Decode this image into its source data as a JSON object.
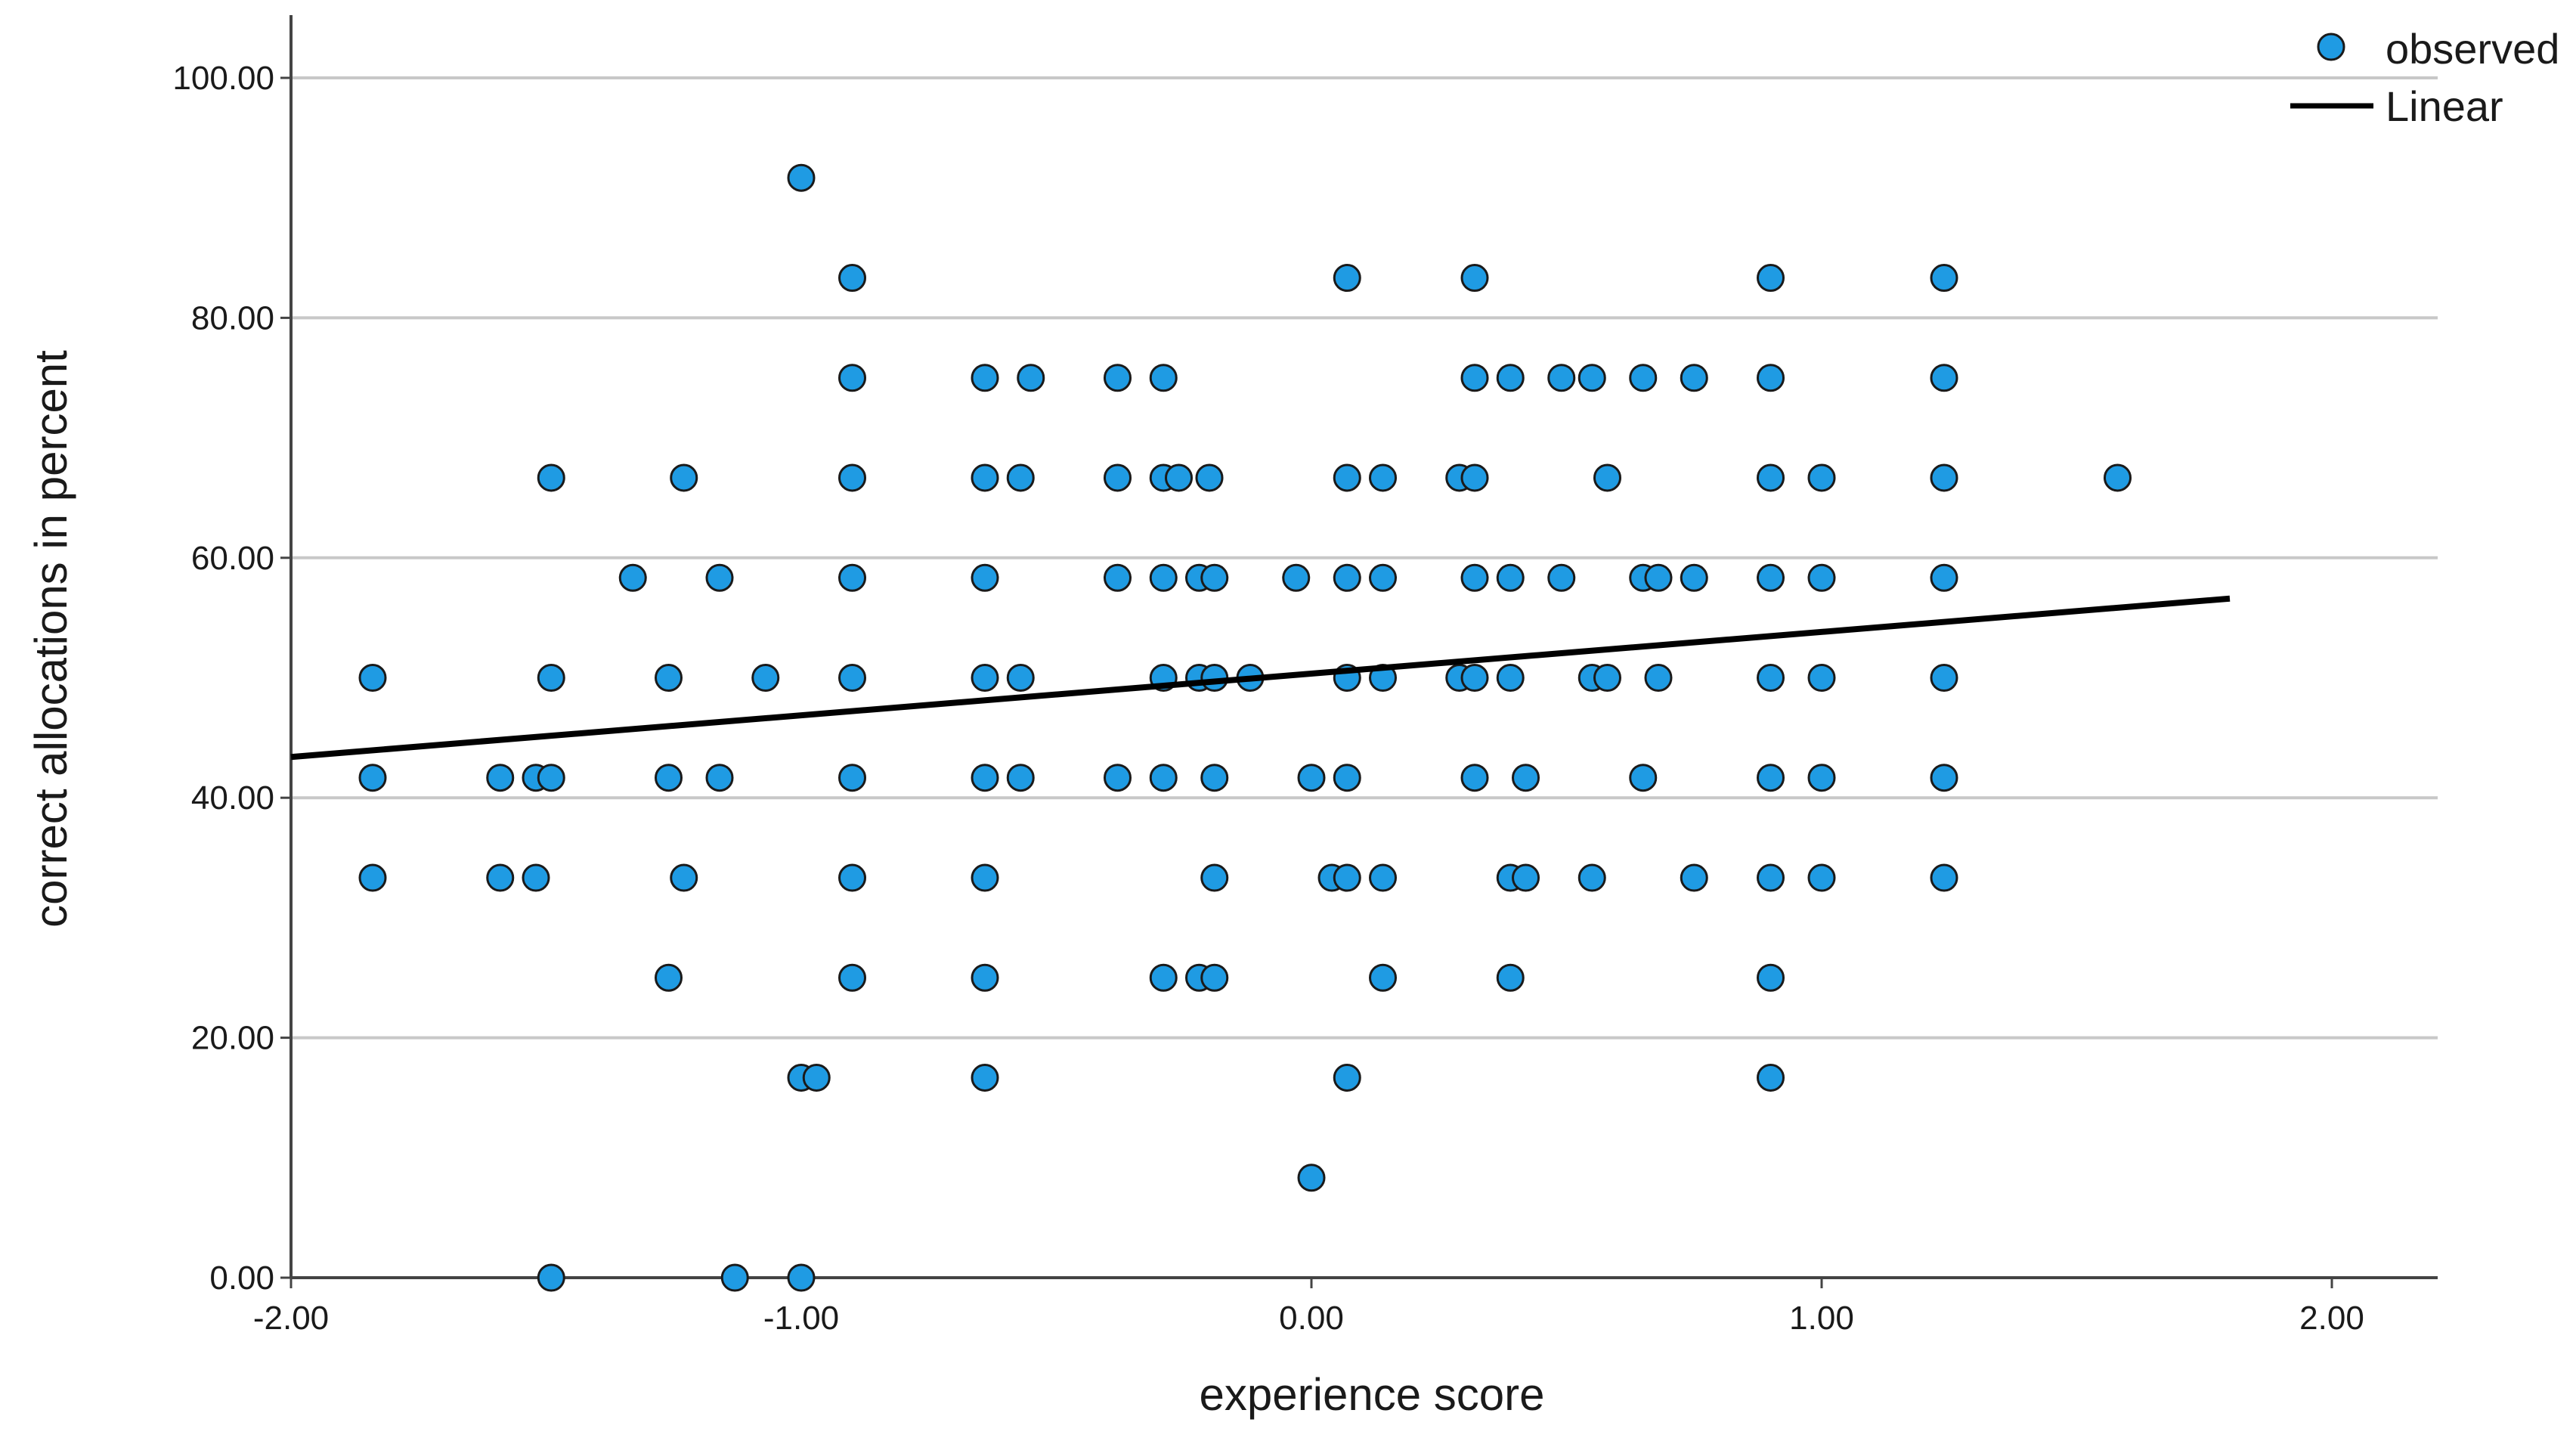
{
  "chart_data": {
    "type": "scatter",
    "title": "",
    "xlabel": "experience score",
    "ylabel": "correct allocations in percent",
    "xlim": [
      -2.0,
      2.2
    ],
    "ylim": [
      0,
      105
    ],
    "x_ticks": [
      {
        "value": -2.0,
        "label": "-2.00"
      },
      {
        "value": -1.0,
        "label": "-1.00"
      },
      {
        "value": 0.0,
        "label": "0.00"
      },
      {
        "value": 1.0,
        "label": "1.00"
      },
      {
        "value": 2.0,
        "label": "2.00"
      }
    ],
    "y_ticks": [
      {
        "value": 0,
        "label": "0.00"
      },
      {
        "value": 20,
        "label": "20.00"
      },
      {
        "value": 40,
        "label": "40.00"
      },
      {
        "value": 60,
        "label": "60.00"
      },
      {
        "value": 80,
        "label": "80.00"
      },
      {
        "value": 100,
        "label": "100.00"
      }
    ],
    "grid": "horizontal",
    "legend": {
      "position": "top-right",
      "entries": [
        {
          "label": "observed",
          "marker": "circle"
        },
        {
          "label": "Linear",
          "marker": "line"
        }
      ]
    },
    "colors": {
      "point_fill": "#1f9be3",
      "point_edge": "#1a1a1a",
      "line": "#000000",
      "grid": "#c8c8c8",
      "axis": "#444444"
    },
    "series": [
      {
        "name": "observed",
        "type": "scatter",
        "points": [
          [
            -1.84,
            50
          ],
          [
            -1.84,
            41.67
          ],
          [
            -1.84,
            33.33
          ],
          [
            -1.59,
            41.67
          ],
          [
            -1.59,
            33.33
          ],
          [
            -1.52,
            41.67
          ],
          [
            -1.52,
            33.33
          ],
          [
            -1.49,
            66.67
          ],
          [
            -1.49,
            50
          ],
          [
            -1.49,
            41.67
          ],
          [
            -1.49,
            0
          ],
          [
            -1.33,
            58.33
          ],
          [
            -1.26,
            50
          ],
          [
            -1.26,
            41.67
          ],
          [
            -1.26,
            25
          ],
          [
            -1.23,
            66.67
          ],
          [
            -1.23,
            33.33
          ],
          [
            -1.16,
            58.33
          ],
          [
            -1.16,
            41.67
          ],
          [
            -1.13,
            0
          ],
          [
            -1.07,
            50
          ],
          [
            -1.0,
            91.67
          ],
          [
            -1.0,
            16.67
          ],
          [
            -1.0,
            0
          ],
          [
            -0.97,
            16.67
          ],
          [
            -0.9,
            83.33
          ],
          [
            -0.9,
            75
          ],
          [
            -0.9,
            66.67
          ],
          [
            -0.9,
            58.33
          ],
          [
            -0.9,
            50
          ],
          [
            -0.9,
            41.67
          ],
          [
            -0.9,
            33.33
          ],
          [
            -0.9,
            25
          ],
          [
            -0.64,
            75
          ],
          [
            -0.64,
            66.67
          ],
          [
            -0.64,
            58.33
          ],
          [
            -0.64,
            50
          ],
          [
            -0.64,
            41.67
          ],
          [
            -0.64,
            33.33
          ],
          [
            -0.64,
            25
          ],
          [
            -0.64,
            16.67
          ],
          [
            -0.55,
            75
          ],
          [
            -0.57,
            66.67
          ],
          [
            -0.57,
            50
          ],
          [
            -0.57,
            41.67
          ],
          [
            -0.38,
            75
          ],
          [
            -0.38,
            66.67
          ],
          [
            -0.38,
            58.33
          ],
          [
            -0.38,
            41.67
          ],
          [
            -0.29,
            75
          ],
          [
            -0.29,
            66.67
          ],
          [
            -0.29,
            58.33
          ],
          [
            -0.29,
            50
          ],
          [
            -0.29,
            41.67
          ],
          [
            -0.29,
            25
          ],
          [
            -0.26,
            66.67
          ],
          [
            -0.2,
            66.67
          ],
          [
            -0.22,
            58.33
          ],
          [
            -0.19,
            58.33
          ],
          [
            -0.22,
            50
          ],
          [
            -0.19,
            50
          ],
          [
            -0.19,
            41.67
          ],
          [
            -0.19,
            33.33
          ],
          [
            -0.22,
            25
          ],
          [
            -0.19,
            25
          ],
          [
            -0.12,
            50
          ],
          [
            -0.03,
            58.33
          ],
          [
            0.0,
            41.67
          ],
          [
            0.0,
            8.33
          ],
          [
            0.04,
            33.33
          ],
          [
            0.07,
            83.33
          ],
          [
            0.07,
            66.67
          ],
          [
            0.07,
            58.33
          ],
          [
            0.07,
            50
          ],
          [
            0.07,
            41.67
          ],
          [
            0.07,
            33.33
          ],
          [
            0.07,
            16.67
          ],
          [
            0.14,
            66.67
          ],
          [
            0.14,
            58.33
          ],
          [
            0.14,
            50
          ],
          [
            0.14,
            33.33
          ],
          [
            0.14,
            25
          ],
          [
            0.29,
            66.67
          ],
          [
            0.29,
            50
          ],
          [
            0.32,
            83.33
          ],
          [
            0.32,
            75
          ],
          [
            0.32,
            66.67
          ],
          [
            0.32,
            58.33
          ],
          [
            0.32,
            50
          ],
          [
            0.32,
            41.67
          ],
          [
            0.39,
            75
          ],
          [
            0.39,
            58.33
          ],
          [
            0.39,
            50
          ],
          [
            0.39,
            33.33
          ],
          [
            0.39,
            25
          ],
          [
            0.42,
            41.67
          ],
          [
            0.42,
            33.33
          ],
          [
            0.49,
            75
          ],
          [
            0.49,
            58.33
          ],
          [
            0.55,
            75
          ],
          [
            0.55,
            50
          ],
          [
            0.55,
            33.33
          ],
          [
            0.58,
            66.67
          ],
          [
            0.58,
            50
          ],
          [
            0.65,
            75
          ],
          [
            0.65,
            58.33
          ],
          [
            0.65,
            41.67
          ],
          [
            0.68,
            58.33
          ],
          [
            0.68,
            50
          ],
          [
            0.75,
            75
          ],
          [
            0.75,
            58.33
          ],
          [
            0.75,
            33.33
          ],
          [
            0.9,
            83.33
          ],
          [
            0.9,
            75
          ],
          [
            0.9,
            66.67
          ],
          [
            0.9,
            58.33
          ],
          [
            0.9,
            50
          ],
          [
            0.9,
            41.67
          ],
          [
            0.9,
            33.33
          ],
          [
            0.9,
            25
          ],
          [
            0.9,
            16.67
          ],
          [
            1.0,
            66.67
          ],
          [
            1.0,
            58.33
          ],
          [
            1.0,
            50
          ],
          [
            1.0,
            41.67
          ],
          [
            1.0,
            33.33
          ],
          [
            1.24,
            83.33
          ],
          [
            1.24,
            75
          ],
          [
            1.24,
            66.67
          ],
          [
            1.24,
            58.33
          ],
          [
            1.24,
            50
          ],
          [
            1.24,
            41.67
          ],
          [
            1.24,
            33.33
          ],
          [
            1.58,
            66.67
          ]
        ]
      },
      {
        "name": "Linear",
        "type": "line",
        "points": [
          [
            -2.0,
            43.4
          ],
          [
            1.8,
            56.6
          ]
        ]
      }
    ]
  }
}
